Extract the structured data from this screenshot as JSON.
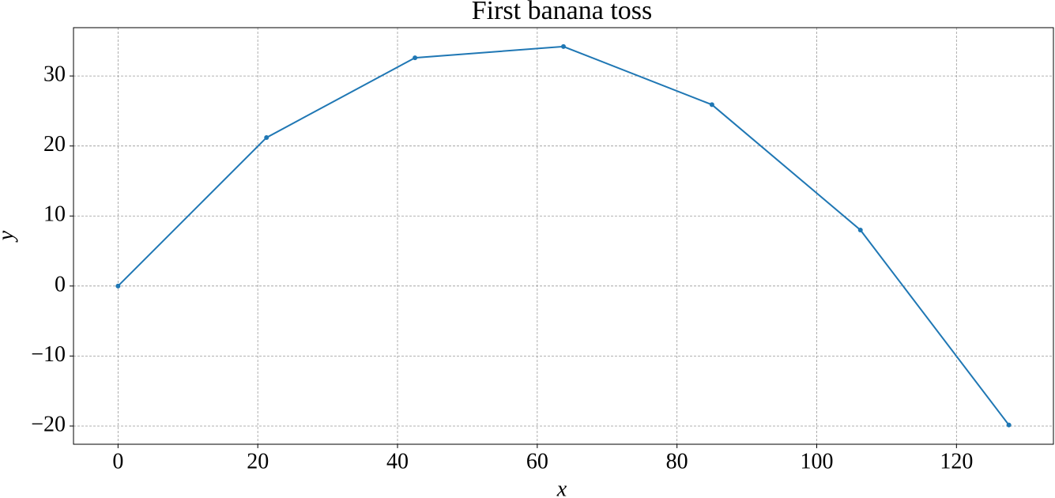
{
  "chart_data": {
    "type": "line",
    "title": "First banana toss",
    "x_label": "x",
    "y_label": "y",
    "series": [
      {
        "color": "#1f77b4",
        "x": [
          0,
          21.25,
          42.5,
          63.75,
          85,
          106.25,
          127.5
        ],
        "values": [
          0,
          21.2,
          32.6,
          34.2,
          25.9,
          8.0,
          -19.85
        ]
      }
    ],
    "xlim": [
      -6.375,
      133.875
    ],
    "ylim": [
      -22.6,
      36.9
    ],
    "xticks": [
      0,
      20,
      40,
      60,
      80,
      100,
      120
    ],
    "yticks": [
      {
        "value": -20,
        "label": "−20"
      },
      {
        "value": -10,
        "label": "−10"
      },
      0,
      10,
      20,
      30
    ],
    "grid": true
  }
}
